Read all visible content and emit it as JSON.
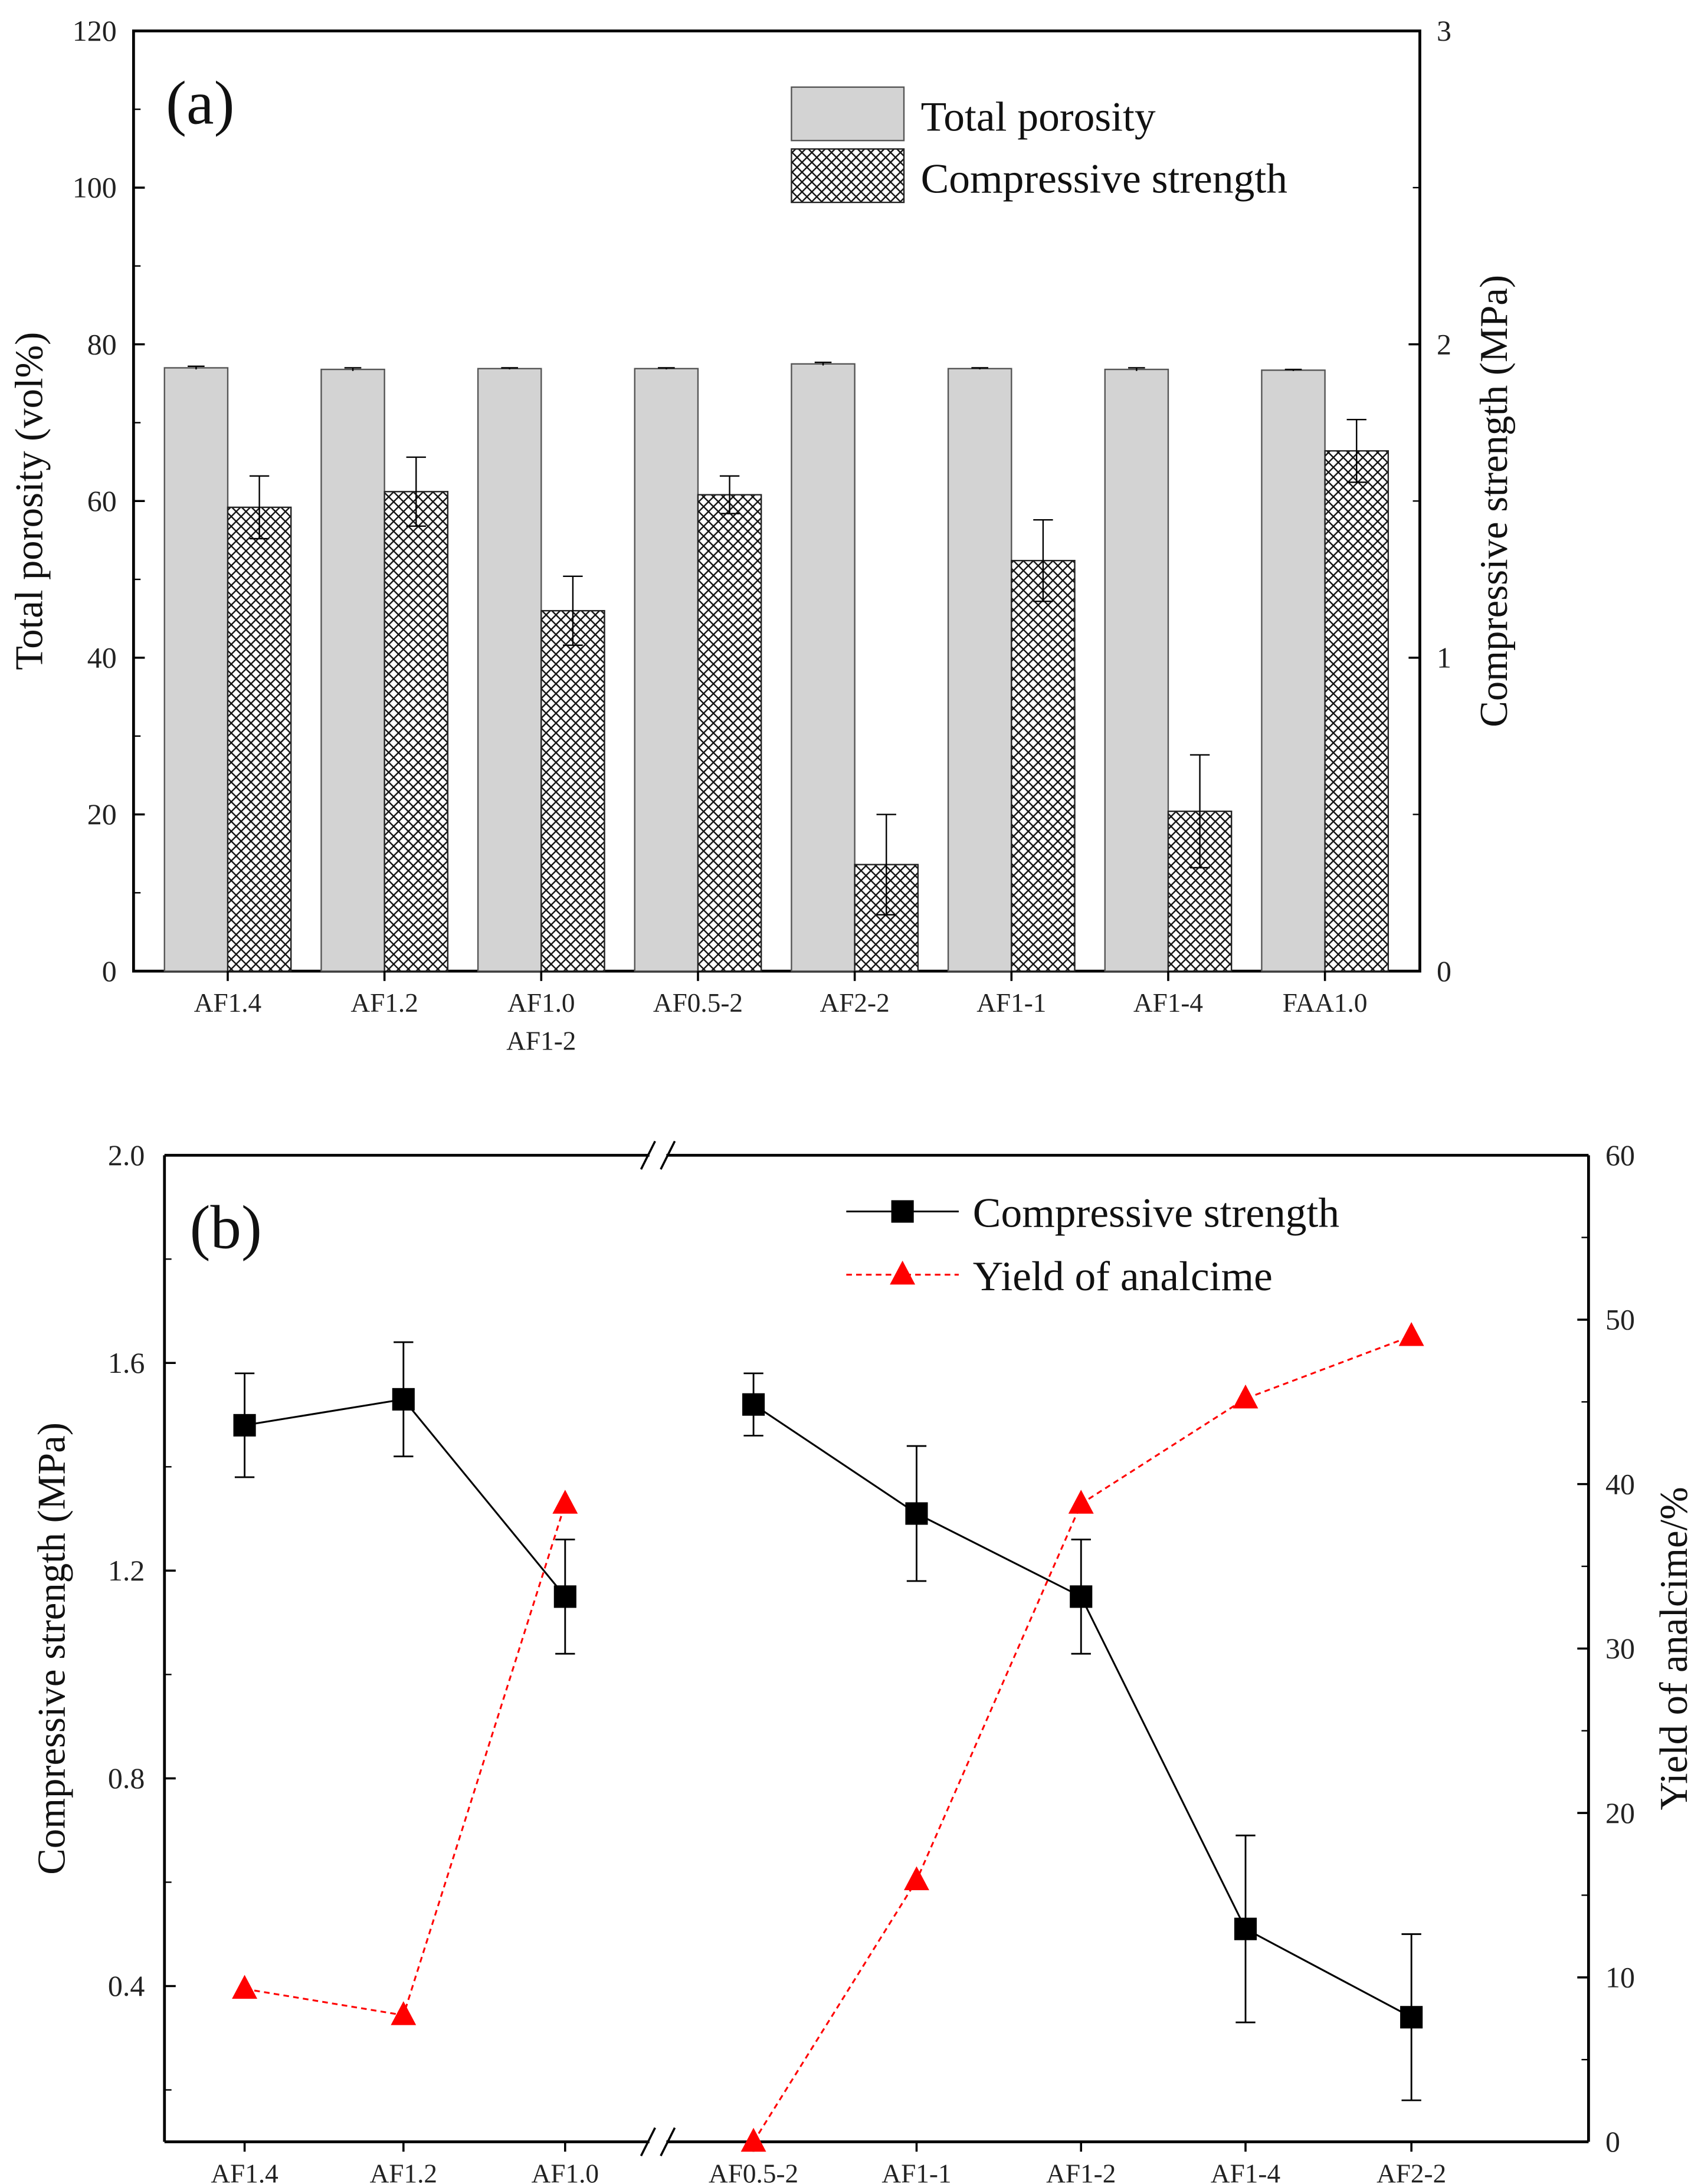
{
  "chart_data": [
    {
      "type": "bar",
      "panel_label": "(a)",
      "categories": [
        "AF1.4",
        "AF1.2",
        "AF1.0\nAF1-2",
        "AF0.5-2",
        "AF2-2",
        "AF1-1",
        "AF1-4",
        "FAA1.0"
      ],
      "category_lines": [
        [
          "AF1.4"
        ],
        [
          "AF1.2"
        ],
        [
          "AF1.0",
          "AF1-2"
        ],
        [
          "AF0.5-2"
        ],
        [
          "AF2-2"
        ],
        [
          "AF1-1"
        ],
        [
          "AF1-4"
        ],
        [
          "FAA1.0"
        ]
      ],
      "series": [
        {
          "name": "Total porosity",
          "axis": "left",
          "fill": "#d3d3d3",
          "values": [
            77.0,
            76.8,
            76.9,
            76.9,
            77.5,
            76.9,
            76.8,
            76.7
          ],
          "errors": [
            0.2,
            0.2,
            0.1,
            0.1,
            0.2,
            0.1,
            0.2,
            0.1
          ]
        },
        {
          "name": "Compressive strength",
          "axis": "right",
          "fill": "crosshatch",
          "values": [
            1.48,
            1.53,
            1.15,
            1.52,
            0.34,
            1.31,
            0.51,
            1.66
          ],
          "errors": [
            0.1,
            0.11,
            0.11,
            0.06,
            0.16,
            0.13,
            0.18,
            0.1
          ]
        }
      ],
      "ylabel": "Total porosity (vol%)",
      "ylim": [
        0,
        120
      ],
      "yticks": [
        "0",
        "20",
        "40",
        "60",
        "80",
        "100",
        "120"
      ],
      "y2label": "Compressive strength (MPa)",
      "y2lim": [
        0,
        3
      ],
      "y2ticks": [
        "0",
        "1",
        "2",
        "3"
      ],
      "legend": [
        "Total porosity",
        "Compressive strength"
      ],
      "legend_position": "top-right"
    },
    {
      "type": "line",
      "panel_label": "(b)",
      "categories": [
        "AF1.4",
        "AF1.2",
        "AF1.0",
        "AF0.5-2",
        "AF1-1",
        "AF1-2",
        "AF1-4",
        "AF2-2"
      ],
      "axis_break_after_index": 2,
      "series": [
        {
          "name": "Compressive strength",
          "axis": "left",
          "color": "#000000",
          "marker": "square",
          "line": "solid",
          "values": [
            1.48,
            1.53,
            1.15,
            1.52,
            1.31,
            1.15,
            0.51,
            0.34
          ],
          "errors": [
            0.1,
            0.11,
            0.11,
            0.06,
            0.13,
            0.11,
            0.18,
            0.16
          ],
          "segments": [
            [
              0,
              2
            ],
            [
              3,
              7
            ]
          ]
        },
        {
          "name": "Yield of analcime",
          "axis": "right",
          "color": "#ff0000",
          "marker": "triangle",
          "line": "dashed",
          "values": [
            9.3,
            7.7,
            38.8,
            0,
            15.9,
            38.8,
            45.2,
            49.0
          ],
          "segments": [
            [
              0,
              2
            ],
            [
              3,
              7
            ]
          ]
        }
      ],
      "ylabel": "Compressive strength (MPa)",
      "ylim": [
        0.1,
        2.0
      ],
      "yticks": [
        "0.4",
        "0.8",
        "1.2",
        "1.6",
        "2.0"
      ],
      "y2label": "Yield of analcime/%",
      "y2lim": [
        0,
        60
      ],
      "y2ticks": [
        "0",
        "10",
        "20",
        "30",
        "40",
        "50",
        "60"
      ],
      "legend": [
        "Compressive strength",
        "Yield of analcime"
      ],
      "legend_position": "top-right"
    }
  ]
}
